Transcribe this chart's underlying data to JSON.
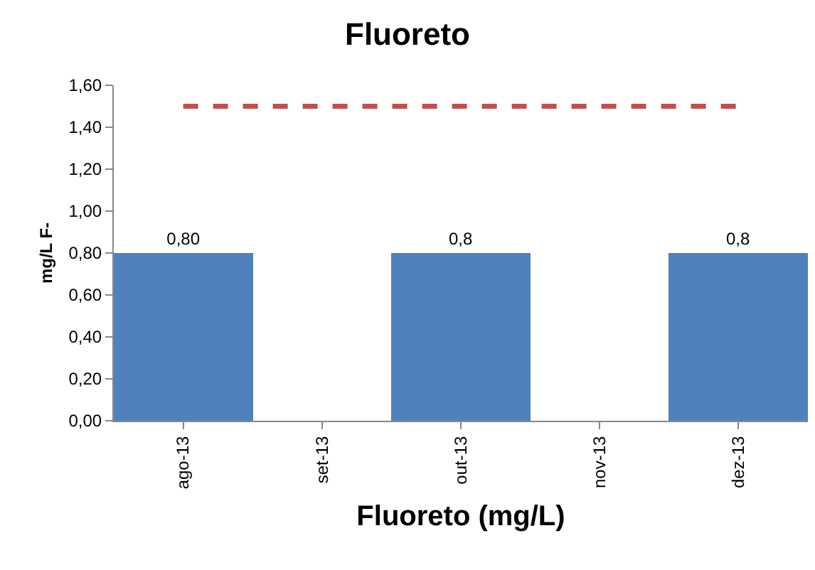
{
  "chart_data": {
    "type": "bar",
    "title": "Fluoreto",
    "xlabel": "Fluoreto (mg/L)",
    "ylabel": "mg/L F-",
    "categories": [
      "ago-13",
      "set-13",
      "out-13",
      "nov-13",
      "dez-13"
    ],
    "series": [
      {
        "color": "#4f81bd",
        "values": [
          0.8,
          null,
          0.8,
          null,
          0.8
        ],
        "value_labels": [
          "0,80",
          null,
          "0,8",
          null,
          "0,8"
        ]
      },
      {
        "type": "line",
        "color": "#c0504d",
        "values": [
          1.5,
          1.5,
          1.5,
          1.5,
          1.5
        ],
        "line_style": "dashed",
        "marker": "none"
      }
    ],
    "ylim": [
      0,
      1.6
    ],
    "yticks": [
      {
        "value": 0,
        "label": "0,00"
      },
      {
        "value": 0.2,
        "label": "0,20"
      },
      {
        "value": 0.4,
        "label": "0,40"
      },
      {
        "value": 0.6,
        "label": "0,60"
      },
      {
        "value": 0.8,
        "label": "0,80"
      },
      {
        "value": 1,
        "label": "1,00"
      },
      {
        "value": 1.2,
        "label": "1,20"
      },
      {
        "value": 1.4,
        "label": "1,40"
      },
      {
        "value": 1.6,
        "label": "1,60"
      }
    ],
    "grid": false,
    "legend": false
  }
}
